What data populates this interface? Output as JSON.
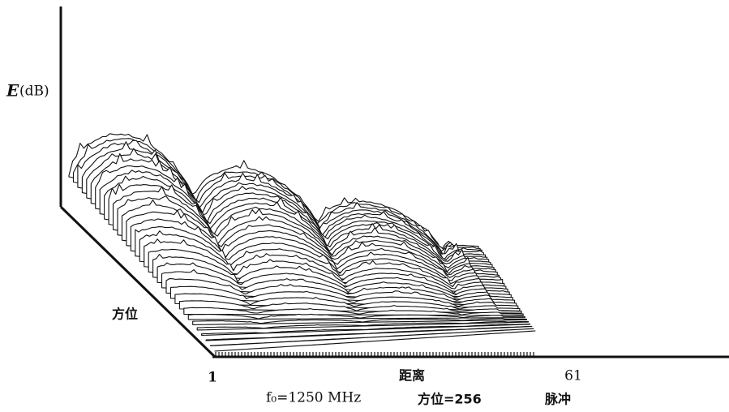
{
  "figure": {
    "vertical_axis": {
      "symbol": "E",
      "unit": "(dB)"
    },
    "depth_axis": {
      "label": "方位"
    },
    "range_axis": {
      "label": "距离",
      "start": "1",
      "end": "61"
    },
    "caption": {
      "frequency": "f₀=1250  MHz",
      "azimuth": "方位=256",
      "unit": "脉冲"
    }
  }
}
